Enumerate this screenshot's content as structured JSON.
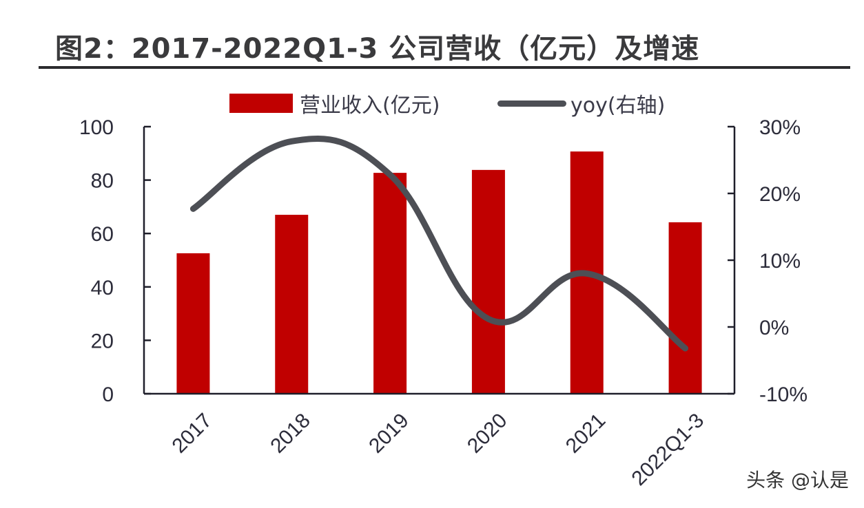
{
  "header": {
    "title": "图2：2017-2022Q1-3 公司营收（亿元）及增速"
  },
  "legend": {
    "bar_label": "营业收入(亿元)",
    "line_label": "yoy(右轴)"
  },
  "axes": {
    "left_ticks": [
      "100",
      "80",
      "60",
      "40",
      "20",
      "0"
    ],
    "right_ticks": [
      "30%",
      "20%",
      "10%",
      "0%",
      "-10%"
    ],
    "x_ticks": [
      "2017",
      "2018",
      "2019",
      "2020",
      "2021",
      "2022Q1-3"
    ]
  },
  "watermark": "头条 @认是",
  "colors": {
    "bar": "#c00000",
    "line": "#4d4f55",
    "axis": "#1e1e2a"
  },
  "chart_data": {
    "type": "bar",
    "title": "图2：2017-2022Q1-3 公司营收（亿元）及增速",
    "categories": [
      "2017",
      "2018",
      "2019",
      "2020",
      "2021",
      "2022Q1-3"
    ],
    "series": [
      {
        "name": "营业收入(亿元)",
        "type": "bar",
        "axis": "left",
        "values": [
          52.6,
          67.0,
          82.7,
          83.8,
          90.7,
          64.2
        ]
      },
      {
        "name": "yoy(右轴)",
        "type": "line",
        "axis": "right",
        "smooth": true,
        "values": [
          17.7,
          27.8,
          22.8,
          1.2,
          8.0,
          -3.2
        ],
        "unit": "%"
      }
    ],
    "xlabel": "",
    "ylabel": "",
    "ylim": [
      0,
      100
    ],
    "y2lim": [
      -10,
      30
    ],
    "yticks": [
      0,
      20,
      40,
      60,
      80,
      100
    ],
    "y2ticks": [
      -10,
      0,
      10,
      20,
      30
    ],
    "legend_position": "top",
    "grid": false
  }
}
